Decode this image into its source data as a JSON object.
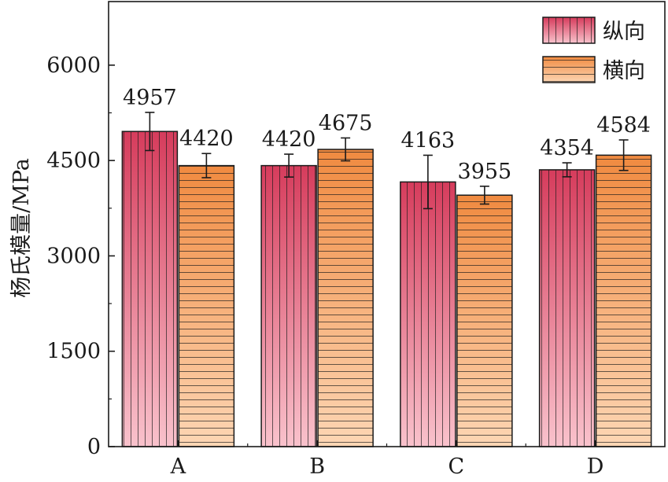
{
  "chart_data": {
    "type": "bar",
    "title": "",
    "xlabel": "",
    "ylabel": "杨氏模量/MPa",
    "categories": [
      "A",
      "B",
      "C",
      "D"
    ],
    "ylim": [
      0,
      7000
    ],
    "yticks": [
      0,
      1500,
      3000,
      4500,
      6000
    ],
    "grid": false,
    "legend_position": "top-right",
    "series": [
      {
        "name": "纵向",
        "values": [
          4957,
          4420,
          4163,
          4354
        ],
        "errors": [
          300,
          180,
          420,
          110
        ],
        "labels": [
          "4957",
          "4420",
          "4163",
          "4354"
        ],
        "color_top": "#d63c5c",
        "color_bottom": "#f9c2cc",
        "hatch": "vertical"
      },
      {
        "name": "横向",
        "values": [
          4420,
          4675,
          3955,
          4584
        ],
        "errors": [
          190,
          180,
          140,
          240
        ],
        "labels": [
          "4420",
          "4675",
          "3955",
          "4584"
        ],
        "color_top": "#f08a40",
        "color_bottom": "#fdd6b4",
        "hatch": "horizontal"
      }
    ]
  }
}
